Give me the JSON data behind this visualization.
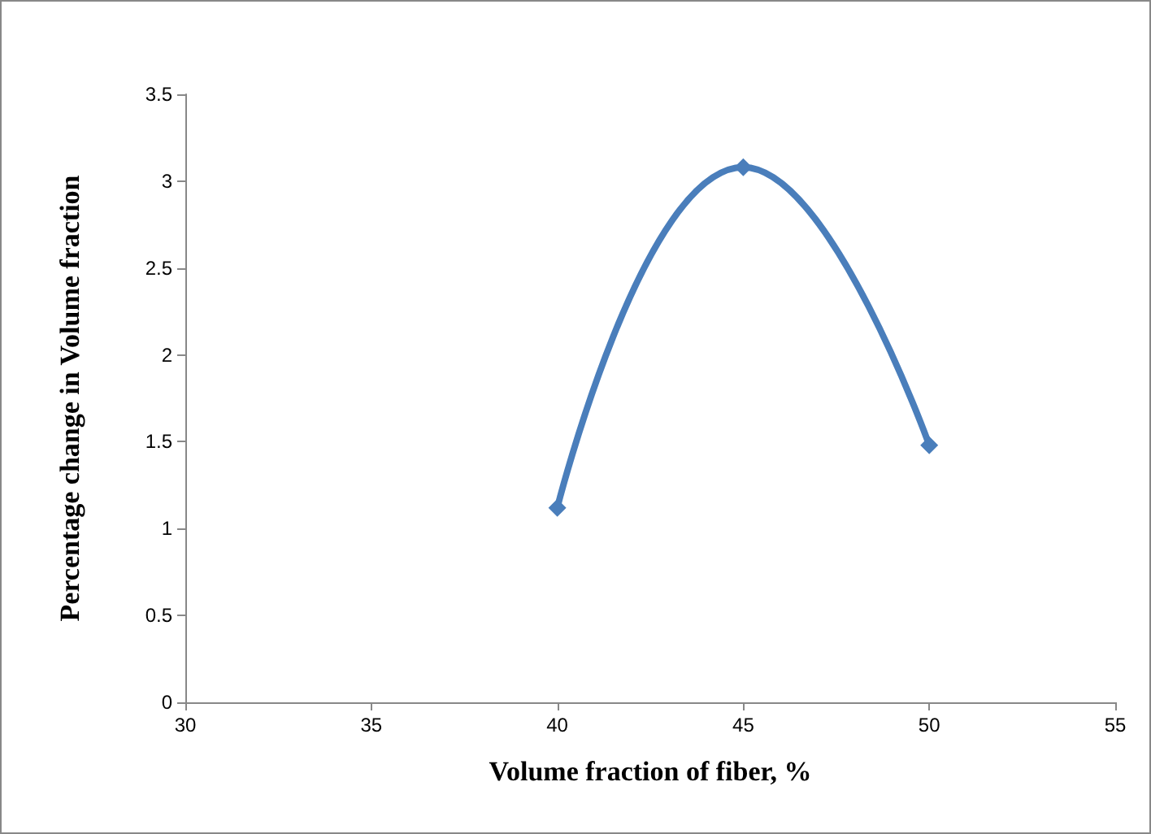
{
  "chart_data": {
    "type": "line",
    "xlabel": "Volume fraction of fiber, %",
    "ylabel": "Percentage change in Volume fraction",
    "x": [
      40,
      45,
      50
    ],
    "series": [
      {
        "color": "#4a7ebb",
        "values": [
          1.12,
          3.08,
          1.48
        ]
      }
    ],
    "xlim": [
      30,
      55
    ],
    "xticks": [
      30,
      35,
      40,
      45,
      50,
      55
    ],
    "ylim": [
      0,
      3.5
    ],
    "yticks": [
      0,
      0.5,
      1,
      1.5,
      2,
      2.5,
      3,
      3.5
    ],
    "marker": "diamond",
    "line_style": "solid"
  }
}
